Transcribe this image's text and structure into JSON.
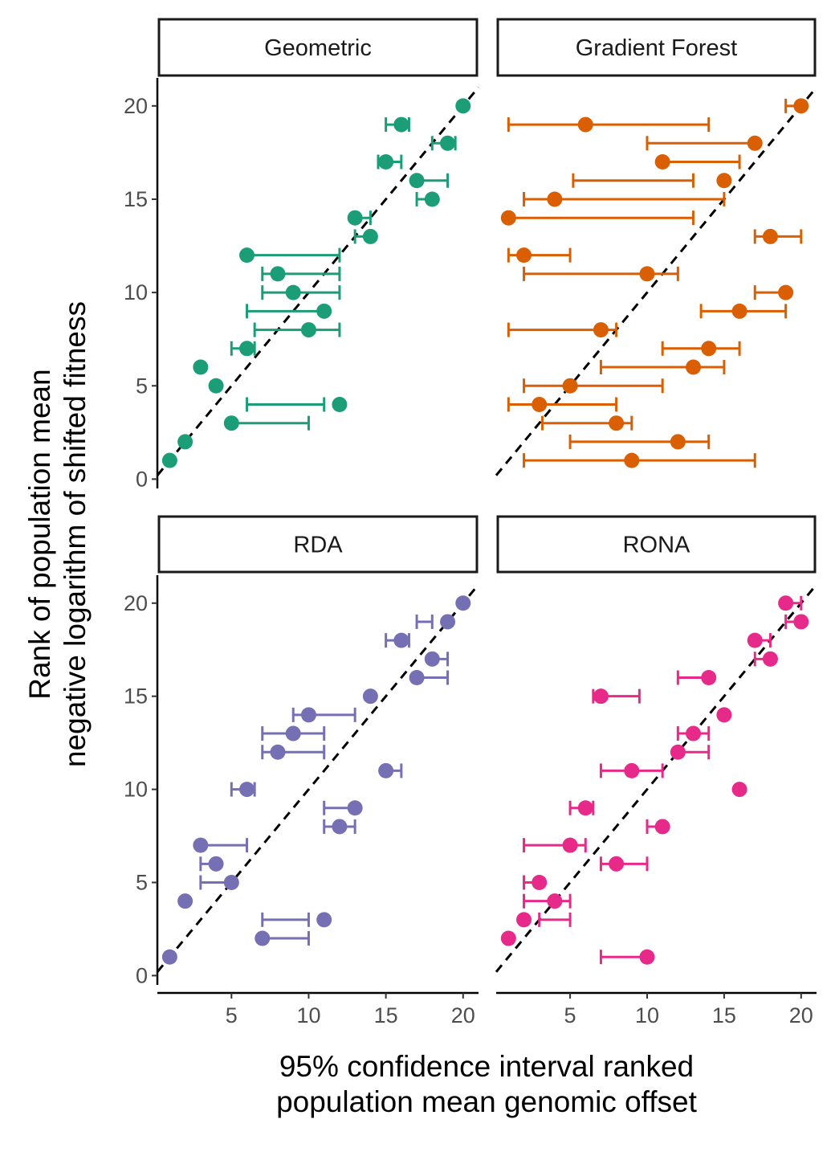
{
  "chart_data": {
    "type": "scatter",
    "xlabel": [
      "95% confidence interval ranked",
      "population mean genomic offset"
    ],
    "ylabel": [
      "Rank of population mean",
      "negative logarithm of shifted fitness"
    ],
    "xlim": [
      0.2,
      21
    ],
    "ylim": [
      -0.5,
      21.5
    ],
    "xticks": [
      5,
      10,
      15,
      20
    ],
    "yticks": [
      0,
      5,
      10,
      15,
      20
    ],
    "reference_line": "y = x (dashed)",
    "grid": false,
    "legend": "none",
    "panels": [
      {
        "name": "Geometric",
        "color": "#1b9e77",
        "points": [
          {
            "y": 20,
            "x": 20,
            "lo": 20,
            "hi": 20
          },
          {
            "y": 19,
            "x": 16,
            "lo": 15,
            "hi": 16.5
          },
          {
            "y": 18,
            "x": 19,
            "lo": 18,
            "hi": 19.5
          },
          {
            "y": 17,
            "x": 15,
            "lo": 14.5,
            "hi": 16
          },
          {
            "y": 16,
            "x": 17,
            "lo": 17,
            "hi": 19
          },
          {
            "y": 15,
            "x": 18,
            "lo": 17,
            "hi": 18
          },
          {
            "y": 14,
            "x": 13,
            "lo": 13,
            "hi": 14
          },
          {
            "y": 13,
            "x": 14,
            "lo": 13,
            "hi": 14
          },
          {
            "y": 12,
            "x": 6,
            "lo": 6,
            "hi": 12
          },
          {
            "y": 11,
            "x": 8,
            "lo": 7,
            "hi": 12
          },
          {
            "y": 10,
            "x": 9,
            "lo": 7,
            "hi": 12
          },
          {
            "y": 9,
            "x": 11,
            "lo": 6,
            "hi": 11
          },
          {
            "y": 8,
            "x": 10,
            "lo": 6.5,
            "hi": 12
          },
          {
            "y": 7,
            "x": 6,
            "lo": 5,
            "hi": 6.5
          },
          {
            "y": 6,
            "x": 3,
            "lo": 3,
            "hi": 3
          },
          {
            "y": 5,
            "x": 4,
            "lo": 4,
            "hi": 4
          },
          {
            "y": 4,
            "x": 12,
            "lo": 6,
            "hi": 11
          },
          {
            "y": 3,
            "x": 5,
            "lo": 5,
            "hi": 10
          },
          {
            "y": 2,
            "x": 2,
            "lo": 2,
            "hi": 2
          },
          {
            "y": 1,
            "x": 1,
            "lo": 1,
            "hi": 1
          }
        ]
      },
      {
        "name": "Gradient Forest",
        "color": "#d95f02",
        "points": [
          {
            "y": 20,
            "x": 20,
            "lo": 19,
            "hi": 20
          },
          {
            "y": 19,
            "x": 6,
            "lo": 1,
            "hi": 14
          },
          {
            "y": 18,
            "x": 17,
            "lo": 10,
            "hi": 17
          },
          {
            "y": 17,
            "x": 11,
            "lo": 11,
            "hi": 16
          },
          {
            "y": 16,
            "x": 15,
            "lo": 5.2,
            "hi": 13
          },
          {
            "y": 15,
            "x": 4,
            "lo": 2,
            "hi": 15
          },
          {
            "y": 14,
            "x": 1,
            "lo": 1,
            "hi": 13
          },
          {
            "y": 13,
            "x": 18,
            "lo": 17,
            "hi": 20
          },
          {
            "y": 12,
            "x": 2,
            "lo": 1,
            "hi": 5
          },
          {
            "y": 11,
            "x": 10,
            "lo": 2,
            "hi": 12
          },
          {
            "y": 10,
            "x": 19,
            "lo": 17,
            "hi": 19
          },
          {
            "y": 9,
            "x": 16,
            "lo": 13.5,
            "hi": 19
          },
          {
            "y": 8,
            "x": 7,
            "lo": 1,
            "hi": 8
          },
          {
            "y": 7,
            "x": 14,
            "lo": 11,
            "hi": 16
          },
          {
            "y": 6,
            "x": 13,
            "lo": 7,
            "hi": 15
          },
          {
            "y": 5,
            "x": 5,
            "lo": 2,
            "hi": 11
          },
          {
            "y": 4,
            "x": 3,
            "lo": 1,
            "hi": 8
          },
          {
            "y": 3,
            "x": 8,
            "lo": 3.2,
            "hi": 9
          },
          {
            "y": 2,
            "x": 12,
            "lo": 5,
            "hi": 14
          },
          {
            "y": 1,
            "x": 9,
            "lo": 2,
            "hi": 17
          }
        ]
      },
      {
        "name": "RDA",
        "color": "#7570b3",
        "points": [
          {
            "y": 20,
            "x": 20,
            "lo": 20,
            "hi": 20
          },
          {
            "y": 19,
            "x": 19,
            "lo": 17,
            "hi": 18
          },
          {
            "y": 18,
            "x": 16,
            "lo": 15,
            "hi": 16.5
          },
          {
            "y": 17,
            "x": 18,
            "lo": 18,
            "hi": 19
          },
          {
            "y": 16,
            "x": 17,
            "lo": 17,
            "hi": 19
          },
          {
            "y": 15,
            "x": 14,
            "lo": 14,
            "hi": 14
          },
          {
            "y": 14,
            "x": 10,
            "lo": 9,
            "hi": 13
          },
          {
            "y": 13,
            "x": 9,
            "lo": 7,
            "hi": 11
          },
          {
            "y": 12,
            "x": 8,
            "lo": 7,
            "hi": 11
          },
          {
            "y": 11,
            "x": 15,
            "lo": 15,
            "hi": 16
          },
          {
            "y": 10,
            "x": 6,
            "lo": 5,
            "hi": 6.5
          },
          {
            "y": 9,
            "x": 13,
            "lo": 11,
            "hi": 13
          },
          {
            "y": 8,
            "x": 12,
            "lo": 11,
            "hi": 13
          },
          {
            "y": 7,
            "x": 3,
            "lo": 3,
            "hi": 6
          },
          {
            "y": 6,
            "x": 4,
            "lo": 3,
            "hi": 4
          },
          {
            "y": 5,
            "x": 5,
            "lo": 3,
            "hi": 5
          },
          {
            "y": 4,
            "x": 2,
            "lo": 2,
            "hi": 2
          },
          {
            "y": 3,
            "x": 11,
            "lo": 7,
            "hi": 10
          },
          {
            "y": 2,
            "x": 7,
            "lo": 7,
            "hi": 10
          },
          {
            "y": 1,
            "x": 1,
            "lo": 1,
            "hi": 1
          }
        ]
      },
      {
        "name": "RONA",
        "color": "#e7298a",
        "points": [
          {
            "y": 20,
            "x": 19,
            "lo": 19,
            "hi": 20
          },
          {
            "y": 19,
            "x": 20,
            "lo": 19,
            "hi": 20
          },
          {
            "y": 18,
            "x": 17,
            "lo": 17,
            "hi": 18
          },
          {
            "y": 17,
            "x": 18,
            "lo": 17,
            "hi": 18
          },
          {
            "y": 16,
            "x": 14,
            "lo": 12,
            "hi": 14
          },
          {
            "y": 15,
            "x": 7,
            "lo": 6.5,
            "hi": 9.5
          },
          {
            "y": 14,
            "x": 15,
            "lo": 15,
            "hi": 15
          },
          {
            "y": 13,
            "x": 13,
            "lo": 12,
            "hi": 14
          },
          {
            "y": 12,
            "x": 12,
            "lo": 12,
            "hi": 14
          },
          {
            "y": 11,
            "x": 9,
            "lo": 7,
            "hi": 11
          },
          {
            "y": 10,
            "x": 16,
            "lo": 16,
            "hi": 16
          },
          {
            "y": 9,
            "x": 6,
            "lo": 5,
            "hi": 6.5
          },
          {
            "y": 8,
            "x": 11,
            "lo": 10,
            "hi": 11
          },
          {
            "y": 7,
            "x": 5,
            "lo": 2,
            "hi": 6
          },
          {
            "y": 6,
            "x": 8,
            "lo": 7,
            "hi": 10
          },
          {
            "y": 5,
            "x": 3,
            "lo": 2,
            "hi": 3
          },
          {
            "y": 4,
            "x": 4,
            "lo": 2,
            "hi": 5
          },
          {
            "y": 3,
            "x": 2,
            "lo": 3,
            "hi": 5
          },
          {
            "y": 2,
            "x": 1,
            "lo": 1,
            "hi": 1
          },
          {
            "y": 1,
            "x": 10,
            "lo": 7,
            "hi": 10
          }
        ]
      }
    ]
  }
}
